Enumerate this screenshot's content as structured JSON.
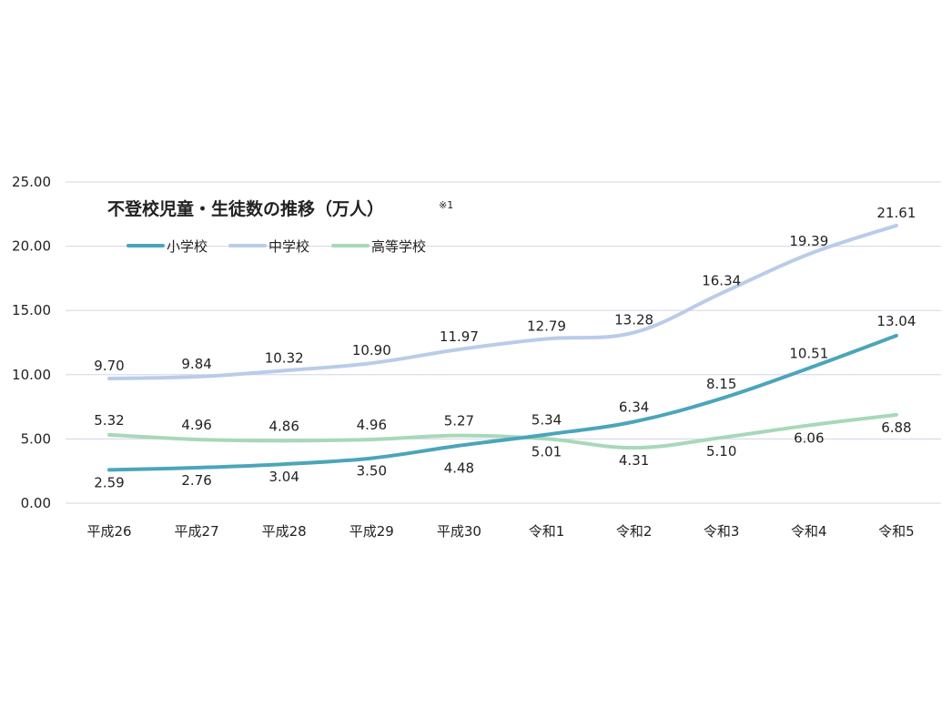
{
  "chart_data": {
    "type": "line",
    "title": "不登校児童・生徒数の推移（万人）",
    "title_note": "※1",
    "xlabel": "",
    "ylabel": "",
    "ylim": [
      0,
      25
    ],
    "y_ticks": [
      "0.00",
      "5.00",
      "10.00",
      "15.00",
      "20.00",
      "25.00"
    ],
    "grid": true,
    "legend_position": "top-left",
    "categories": [
      "平成26",
      "平成27",
      "平成28",
      "平成29",
      "平成30",
      "令和1",
      "令和2",
      "令和3",
      "令和4",
      "令和5"
    ],
    "series": [
      {
        "name": "小学校",
        "color": "#4ba5bb",
        "values": [
          2.59,
          2.76,
          3.04,
          3.5,
          4.48,
          5.34,
          6.34,
          8.15,
          10.51,
          13.04
        ],
        "labels": [
          "2.59",
          "2.76",
          "3.04",
          "3.50",
          "4.48",
          "5.34",
          "6.34",
          "8.15",
          "10.51",
          "13.04"
        ]
      },
      {
        "name": "中学校",
        "color": "#b9cce9",
        "values": [
          9.7,
          9.84,
          10.32,
          10.9,
          11.97,
          12.79,
          13.28,
          16.34,
          19.39,
          21.61
        ],
        "labels": [
          "9.70",
          "9.84",
          "10.32",
          "10.90",
          "11.97",
          "12.79",
          "13.28",
          "16.34",
          "19.39",
          "21.61"
        ]
      },
      {
        "name": "高等学校",
        "color": "#a8d8b9",
        "values": [
          5.32,
          4.96,
          4.86,
          4.96,
          5.27,
          5.01,
          4.31,
          5.1,
          6.06,
          6.88
        ],
        "labels": [
          "5.32",
          "4.96",
          "4.86",
          "4.96",
          "5.27",
          "5.01",
          "4.31",
          "5.10",
          "6.06",
          "6.88"
        ]
      }
    ]
  }
}
